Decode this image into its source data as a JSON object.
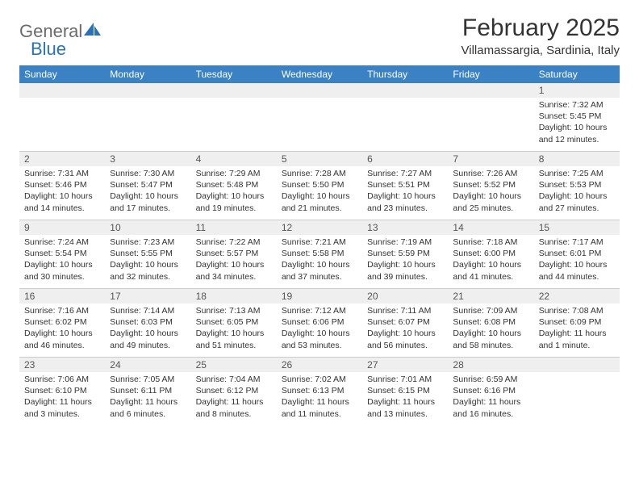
{
  "logo": {
    "word1": "General",
    "word2": "Blue"
  },
  "title": "February 2025",
  "location": "Villamassargia, Sardinia, Italy",
  "colors": {
    "header_bg": "#3b82c4",
    "header_text": "#ffffff",
    "daynum_bg": "#efefef",
    "text": "#333333",
    "logo_gray": "#6b6b6b",
    "logo_blue": "#2a72b5",
    "border": "#cccccc"
  },
  "weekdays": [
    "Sunday",
    "Monday",
    "Tuesday",
    "Wednesday",
    "Thursday",
    "Friday",
    "Saturday"
  ],
  "weeks": [
    [
      {
        "day": "",
        "lines": []
      },
      {
        "day": "",
        "lines": []
      },
      {
        "day": "",
        "lines": []
      },
      {
        "day": "",
        "lines": []
      },
      {
        "day": "",
        "lines": []
      },
      {
        "day": "",
        "lines": []
      },
      {
        "day": "1",
        "lines": [
          "Sunrise: 7:32 AM",
          "Sunset: 5:45 PM",
          "Daylight: 10 hours and 12 minutes."
        ]
      }
    ],
    [
      {
        "day": "2",
        "lines": [
          "Sunrise: 7:31 AM",
          "Sunset: 5:46 PM",
          "Daylight: 10 hours and 14 minutes."
        ]
      },
      {
        "day": "3",
        "lines": [
          "Sunrise: 7:30 AM",
          "Sunset: 5:47 PM",
          "Daylight: 10 hours and 17 minutes."
        ]
      },
      {
        "day": "4",
        "lines": [
          "Sunrise: 7:29 AM",
          "Sunset: 5:48 PM",
          "Daylight: 10 hours and 19 minutes."
        ]
      },
      {
        "day": "5",
        "lines": [
          "Sunrise: 7:28 AM",
          "Sunset: 5:50 PM",
          "Daylight: 10 hours and 21 minutes."
        ]
      },
      {
        "day": "6",
        "lines": [
          "Sunrise: 7:27 AM",
          "Sunset: 5:51 PM",
          "Daylight: 10 hours and 23 minutes."
        ]
      },
      {
        "day": "7",
        "lines": [
          "Sunrise: 7:26 AM",
          "Sunset: 5:52 PM",
          "Daylight: 10 hours and 25 minutes."
        ]
      },
      {
        "day": "8",
        "lines": [
          "Sunrise: 7:25 AM",
          "Sunset: 5:53 PM",
          "Daylight: 10 hours and 27 minutes."
        ]
      }
    ],
    [
      {
        "day": "9",
        "lines": [
          "Sunrise: 7:24 AM",
          "Sunset: 5:54 PM",
          "Daylight: 10 hours and 30 minutes."
        ]
      },
      {
        "day": "10",
        "lines": [
          "Sunrise: 7:23 AM",
          "Sunset: 5:55 PM",
          "Daylight: 10 hours and 32 minutes."
        ]
      },
      {
        "day": "11",
        "lines": [
          "Sunrise: 7:22 AM",
          "Sunset: 5:57 PM",
          "Daylight: 10 hours and 34 minutes."
        ]
      },
      {
        "day": "12",
        "lines": [
          "Sunrise: 7:21 AM",
          "Sunset: 5:58 PM",
          "Daylight: 10 hours and 37 minutes."
        ]
      },
      {
        "day": "13",
        "lines": [
          "Sunrise: 7:19 AM",
          "Sunset: 5:59 PM",
          "Daylight: 10 hours and 39 minutes."
        ]
      },
      {
        "day": "14",
        "lines": [
          "Sunrise: 7:18 AM",
          "Sunset: 6:00 PM",
          "Daylight: 10 hours and 41 minutes."
        ]
      },
      {
        "day": "15",
        "lines": [
          "Sunrise: 7:17 AM",
          "Sunset: 6:01 PM",
          "Daylight: 10 hours and 44 minutes."
        ]
      }
    ],
    [
      {
        "day": "16",
        "lines": [
          "Sunrise: 7:16 AM",
          "Sunset: 6:02 PM",
          "Daylight: 10 hours and 46 minutes."
        ]
      },
      {
        "day": "17",
        "lines": [
          "Sunrise: 7:14 AM",
          "Sunset: 6:03 PM",
          "Daylight: 10 hours and 49 minutes."
        ]
      },
      {
        "day": "18",
        "lines": [
          "Sunrise: 7:13 AM",
          "Sunset: 6:05 PM",
          "Daylight: 10 hours and 51 minutes."
        ]
      },
      {
        "day": "19",
        "lines": [
          "Sunrise: 7:12 AM",
          "Sunset: 6:06 PM",
          "Daylight: 10 hours and 53 minutes."
        ]
      },
      {
        "day": "20",
        "lines": [
          "Sunrise: 7:11 AM",
          "Sunset: 6:07 PM",
          "Daylight: 10 hours and 56 minutes."
        ]
      },
      {
        "day": "21",
        "lines": [
          "Sunrise: 7:09 AM",
          "Sunset: 6:08 PM",
          "Daylight: 10 hours and 58 minutes."
        ]
      },
      {
        "day": "22",
        "lines": [
          "Sunrise: 7:08 AM",
          "Sunset: 6:09 PM",
          "Daylight: 11 hours and 1 minute."
        ]
      }
    ],
    [
      {
        "day": "23",
        "lines": [
          "Sunrise: 7:06 AM",
          "Sunset: 6:10 PM",
          "Daylight: 11 hours and 3 minutes."
        ]
      },
      {
        "day": "24",
        "lines": [
          "Sunrise: 7:05 AM",
          "Sunset: 6:11 PM",
          "Daylight: 11 hours and 6 minutes."
        ]
      },
      {
        "day": "25",
        "lines": [
          "Sunrise: 7:04 AM",
          "Sunset: 6:12 PM",
          "Daylight: 11 hours and 8 minutes."
        ]
      },
      {
        "day": "26",
        "lines": [
          "Sunrise: 7:02 AM",
          "Sunset: 6:13 PM",
          "Daylight: 11 hours and 11 minutes."
        ]
      },
      {
        "day": "27",
        "lines": [
          "Sunrise: 7:01 AM",
          "Sunset: 6:15 PM",
          "Daylight: 11 hours and 13 minutes."
        ]
      },
      {
        "day": "28",
        "lines": [
          "Sunrise: 6:59 AM",
          "Sunset: 6:16 PM",
          "Daylight: 11 hours and 16 minutes."
        ]
      },
      {
        "day": "",
        "lines": []
      }
    ]
  ]
}
